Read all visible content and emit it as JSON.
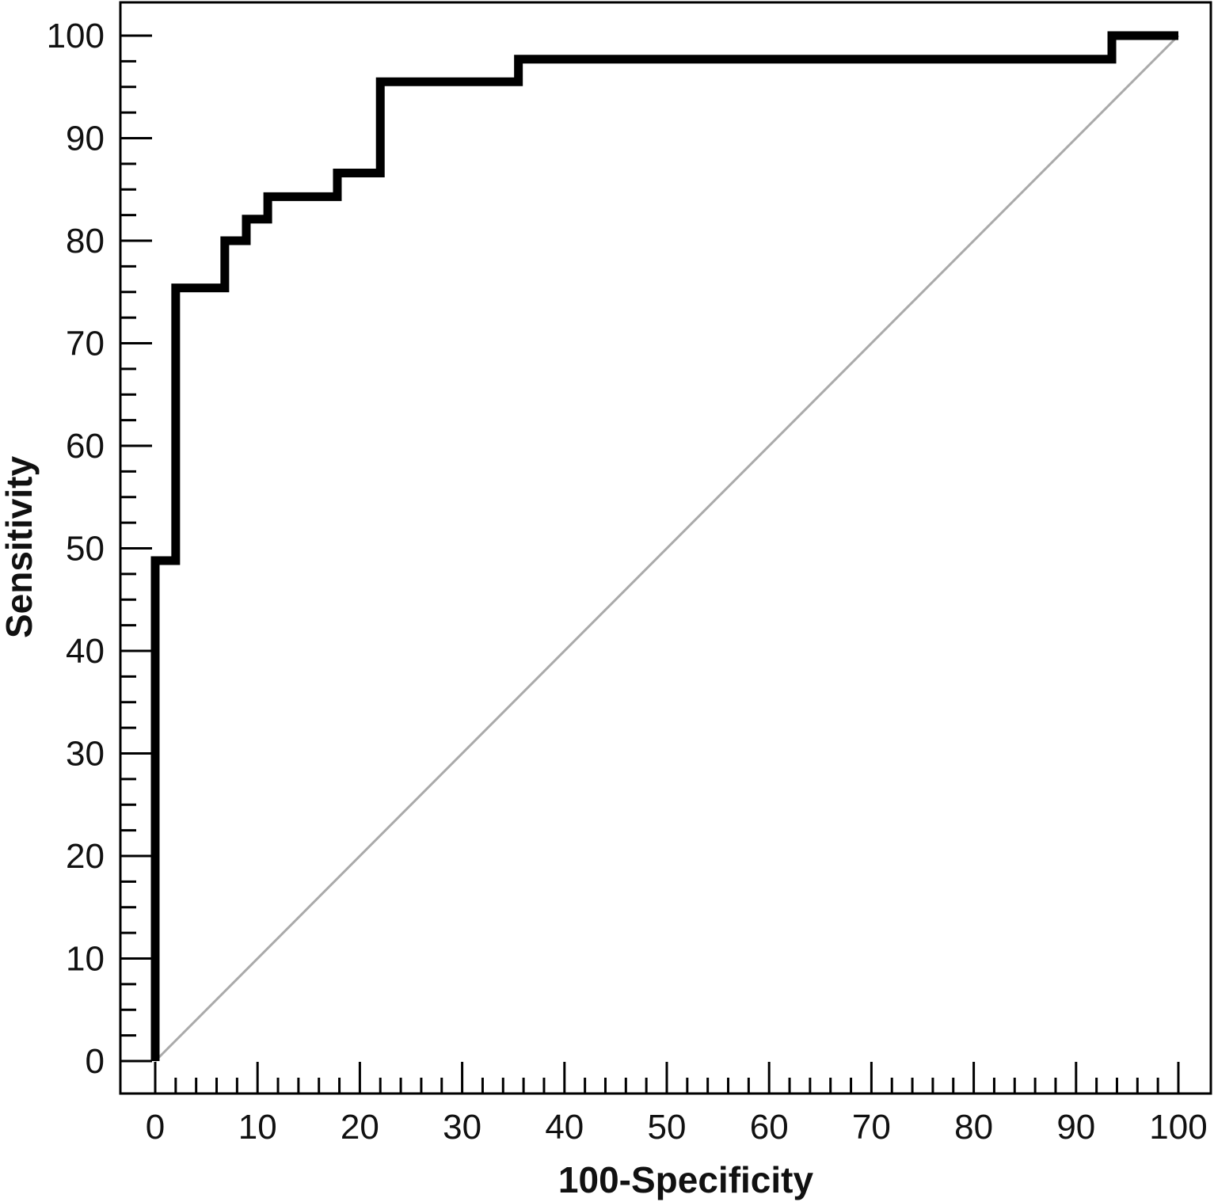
{
  "chart_data": {
    "type": "line",
    "title": "",
    "xlabel": "100-Specificity",
    "ylabel": "Sensitivity",
    "xlim": [
      0,
      100
    ],
    "ylim": [
      0,
      100
    ],
    "x_ticks": [
      "0",
      "10",
      "20",
      "30",
      "40",
      "50",
      "60",
      "70",
      "80",
      "90",
      "100"
    ],
    "y_ticks": [
      "0",
      "10",
      "20",
      "30",
      "40",
      "50",
      "60",
      "70",
      "80",
      "90",
      "100"
    ],
    "grid": false,
    "legend": "none",
    "series": [
      {
        "style": "step",
        "color": "#000000",
        "points": [
          [
            0,
            0
          ],
          [
            0,
            48.8
          ],
          [
            2,
            48.8
          ],
          [
            2,
            75.4
          ],
          [
            6.8,
            75.4
          ],
          [
            6.8,
            80
          ],
          [
            8.9,
            80
          ],
          [
            8.9,
            82.1
          ],
          [
            11,
            82.1
          ],
          [
            11,
            84.3
          ],
          [
            17.8,
            84.3
          ],
          [
            17.8,
            86.6
          ],
          [
            22,
            86.6
          ],
          [
            22,
            95.5
          ],
          [
            35.5,
            95.5
          ],
          [
            35.5,
            97.7
          ],
          [
            93.5,
            97.7
          ],
          [
            93.5,
            100
          ],
          [
            100,
            100
          ]
        ]
      },
      {
        "style": "reference",
        "color": "#aaaaaa",
        "points": [
          [
            0,
            0
          ],
          [
            100,
            100
          ]
        ]
      }
    ]
  }
}
